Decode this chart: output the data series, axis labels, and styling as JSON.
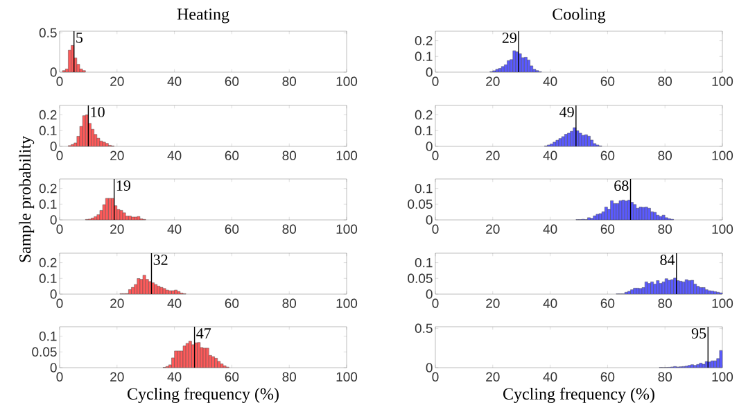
{
  "chart_data": [
    {
      "type": "histogram",
      "title": "Heating",
      "color": "#ff5a5a",
      "xlim": [
        0,
        100
      ],
      "xticks": [
        0,
        20,
        40,
        60,
        80,
        100
      ],
      "ylim": [
        0,
        0.52
      ],
      "yticks": [
        0,
        0.5
      ],
      "bins": [
        1,
        2,
        3,
        4,
        5,
        6,
        7,
        8,
        9
      ],
      "values": [
        0.02,
        0.04,
        0.28,
        0.34,
        0.18,
        0.1,
        0.04,
        0.02
      ],
      "ref_lines": [
        {
          "axis": "x",
          "value": 5,
          "label": "5",
          "color": "#000000"
        }
      ]
    },
    {
      "type": "histogram",
      "title": "Cooling",
      "color": "#5a5aff",
      "xlim": [
        0,
        100
      ],
      "xticks": [
        0,
        20,
        40,
        60,
        80,
        100
      ],
      "ylim": [
        0,
        0.26
      ],
      "yticks": [
        0,
        0.1,
        0.2
      ],
      "bins": [
        19,
        20,
        21,
        22,
        23,
        24,
        25,
        26,
        27,
        28,
        29,
        30,
        31,
        32,
        33,
        34,
        35,
        36,
        37
      ],
      "values": [
        0.003,
        0.009,
        0.018,
        0.024,
        0.036,
        0.047,
        0.073,
        0.08,
        0.136,
        0.129,
        0.117,
        0.092,
        0.095,
        0.077,
        0.04,
        0.018,
        0.01,
        0.003
      ],
      "ref_lines": [
        {
          "axis": "x",
          "value": 29,
          "label": "29",
          "color": "#000000"
        }
      ]
    },
    {
      "type": "histogram",
      "color": "#ff5a5a",
      "xlim": [
        0,
        100
      ],
      "xticks": [
        0,
        20,
        40,
        60,
        80,
        100
      ],
      "ylim": [
        0,
        0.26
      ],
      "yticks": [
        0,
        0.1,
        0.2
      ],
      "bins": [
        3,
        4,
        5,
        6,
        7,
        8,
        9,
        10,
        11,
        12,
        13,
        14,
        15,
        16,
        17,
        18,
        19
      ],
      "values": [
        0.005,
        0.012,
        0.022,
        0.064,
        0.127,
        0.195,
        0.2,
        0.146,
        0.109,
        0.076,
        0.052,
        0.034,
        0.027,
        0.019,
        0.007,
        0.003
      ],
      "ref_lines": [
        {
          "axis": "x",
          "value": 10,
          "label": "10",
          "color": "#000000"
        }
      ]
    },
    {
      "type": "histogram",
      "color": "#5a5aff",
      "xlim": [
        0,
        100
      ],
      "xticks": [
        0,
        20,
        40,
        60,
        80,
        100
      ],
      "ylim": [
        0,
        0.26
      ],
      "yticks": [
        0,
        0.1,
        0.2
      ],
      "bins": [
        38,
        39,
        40,
        41,
        42,
        43,
        44,
        45,
        46,
        47,
        48,
        49,
        50,
        51,
        52,
        53,
        54,
        55,
        56,
        57,
        58
      ],
      "values": [
        0.003,
        0.009,
        0.015,
        0.027,
        0.039,
        0.05,
        0.062,
        0.077,
        0.084,
        0.096,
        0.119,
        0.099,
        0.084,
        0.07,
        0.074,
        0.065,
        0.04,
        0.018,
        0.009,
        0.003
      ],
      "ref_lines": [
        {
          "axis": "x",
          "value": 49,
          "label": "49",
          "color": "#000000"
        }
      ]
    },
    {
      "type": "histogram",
      "ylabel": "Sample probability",
      "color": "#ff5a5a",
      "xlim": [
        0,
        100
      ],
      "xticks": [
        0,
        20,
        40,
        60,
        80,
        100
      ],
      "ylim": [
        0,
        0.26
      ],
      "yticks": [
        0,
        0.1,
        0.2
      ],
      "bins": [
        9,
        10,
        11,
        12,
        13,
        14,
        15,
        16,
        17,
        18,
        19,
        20,
        21,
        22,
        23,
        24,
        25,
        26,
        27,
        28,
        29,
        30
      ],
      "values": [
        0.003,
        0.005,
        0.012,
        0.021,
        0.033,
        0.06,
        0.097,
        0.137,
        0.137,
        0.137,
        0.09,
        0.067,
        0.06,
        0.045,
        0.025,
        0.025,
        0.018,
        0.018,
        0.022,
        0.007,
        0.003
      ],
      "ref_lines": [
        {
          "axis": "x",
          "value": 19,
          "label": "19",
          "color": "#000000"
        }
      ]
    },
    {
      "type": "histogram",
      "color": "#5a5aff",
      "xlim": [
        0,
        100
      ],
      "xticks": [
        0,
        20,
        40,
        60,
        80,
        100
      ],
      "ylim": [
        0,
        0.13
      ],
      "yticks": [
        0,
        0.05,
        0.1
      ],
      "bins": [
        49,
        50,
        51,
        52,
        53,
        54,
        55,
        56,
        57,
        58,
        59,
        60,
        61,
        62,
        63,
        64,
        65,
        66,
        67,
        68,
        69,
        70,
        71,
        72,
        73,
        74,
        75,
        76,
        77,
        78,
        79,
        80,
        81,
        82,
        83
      ],
      "values": [
        0.001,
        0.001,
        0.002,
        0.001,
        0.007,
        0.005,
        0.013,
        0.018,
        0.02,
        0.026,
        0.041,
        0.034,
        0.061,
        0.052,
        0.052,
        0.061,
        0.063,
        0.06,
        0.063,
        0.056,
        0.049,
        0.037,
        0.041,
        0.04,
        0.041,
        0.037,
        0.026,
        0.024,
        0.015,
        0.011,
        0.015,
        0.007,
        0.004,
        0.002
      ],
      "ref_lines": [
        {
          "axis": "x",
          "value": 68,
          "label": "68",
          "color": "#000000"
        }
      ]
    },
    {
      "type": "histogram",
      "color": "#ff5a5a",
      "xlim": [
        0,
        100
      ],
      "xticks": [
        0,
        20,
        40,
        60,
        80,
        100
      ],
      "ylim": [
        0,
        0.26
      ],
      "yticks": [
        0,
        0.1,
        0.2
      ],
      "bins": [
        21,
        22,
        23,
        24,
        25,
        26,
        27,
        28,
        29,
        30,
        31,
        32,
        33,
        34,
        35,
        36,
        37,
        38,
        39,
        40,
        41,
        42,
        43,
        44
      ],
      "values": [
        0.003,
        0.003,
        0.004,
        0.029,
        0.043,
        0.061,
        0.099,
        0.094,
        0.12,
        0.094,
        0.08,
        0.072,
        0.061,
        0.051,
        0.043,
        0.036,
        0.026,
        0.022,
        0.022,
        0.026,
        0.017,
        0.007,
        0.003
      ],
      "ref_lines": [
        {
          "axis": "x",
          "value": 32,
          "label": "32",
          "color": "#000000"
        }
      ]
    },
    {
      "type": "histogram",
      "color": "#5a5aff",
      "xlim": [
        0,
        100
      ],
      "xticks": [
        0,
        20,
        40,
        60,
        80,
        100
      ],
      "ylim": [
        0,
        0.13
      ],
      "yticks": [
        0,
        0.05,
        0.1
      ],
      "bins": [
        63,
        64,
        65,
        66,
        67,
        68,
        69,
        70,
        71,
        72,
        73,
        74,
        75,
        76,
        77,
        78,
        79,
        80,
        81,
        82,
        83,
        84,
        85,
        86,
        87,
        88,
        89,
        90,
        91,
        92,
        93,
        94,
        95,
        96,
        97,
        98,
        99,
        100
      ],
      "values": [
        0.001,
        0.001,
        0.001,
        0.006,
        0.009,
        0.014,
        0.019,
        0.019,
        0.018,
        0.021,
        0.039,
        0.034,
        0.039,
        0.032,
        0.043,
        0.034,
        0.039,
        0.049,
        0.044,
        0.046,
        0.051,
        0.043,
        0.041,
        0.039,
        0.046,
        0.043,
        0.044,
        0.032,
        0.025,
        0.021,
        0.021,
        0.014,
        0.011,
        0.01,
        0.008,
        0.006,
        0.004
      ],
      "ref_lines": [
        {
          "axis": "x",
          "value": 84,
          "label": "84",
          "color": "#000000"
        }
      ]
    },
    {
      "type": "histogram",
      "xlabel": "Cycling frequency (%)",
      "color": "#ff5a5a",
      "xlim": [
        0,
        100
      ],
      "xticks": [
        0,
        20,
        40,
        60,
        80,
        100
      ],
      "ylim": [
        0,
        0.13
      ],
      "yticks": [
        0,
        0.05,
        0.1
      ],
      "bins": [
        36,
        37,
        38,
        39,
        40,
        41,
        42,
        43,
        44,
        45,
        46,
        47,
        48,
        49,
        50,
        51,
        52,
        53,
        54,
        55,
        56,
        57,
        58,
        59
      ],
      "values": [
        0.001,
        0.004,
        0.009,
        0.031,
        0.053,
        0.053,
        0.053,
        0.069,
        0.077,
        0.084,
        0.073,
        0.079,
        0.08,
        0.064,
        0.062,
        0.062,
        0.039,
        0.035,
        0.03,
        0.02,
        0.012,
        0.006,
        0.002
      ],
      "ref_lines": [
        {
          "axis": "x",
          "value": 47,
          "label": "47",
          "color": "#000000"
        }
      ]
    },
    {
      "type": "histogram",
      "xlabel": "Cycling frequency (%)",
      "color": "#5a5aff",
      "xlim": [
        0,
        100
      ],
      "xticks": [
        0,
        20,
        40,
        60,
        80,
        100
      ],
      "ylim": [
        0,
        0.52
      ],
      "yticks": [
        0,
        0.5
      ],
      "bins": [
        78,
        79,
        80,
        81,
        82,
        83,
        84,
        85,
        86,
        87,
        88,
        89,
        90,
        91,
        92,
        93,
        94,
        95,
        96,
        97,
        98,
        99,
        100
      ],
      "values": [
        0.003,
        0.002,
        0.003,
        0.005,
        0.009,
        0.015,
        0.009,
        0.012,
        0.015,
        0.02,
        0.029,
        0.038,
        0.029,
        0.041,
        0.058,
        0.044,
        0.078,
        0.073,
        0.087,
        0.087,
        0.116,
        0.218
      ],
      "ref_lines": [
        {
          "axis": "x",
          "value": 95,
          "label": "95",
          "color": "#000000"
        }
      ]
    }
  ]
}
